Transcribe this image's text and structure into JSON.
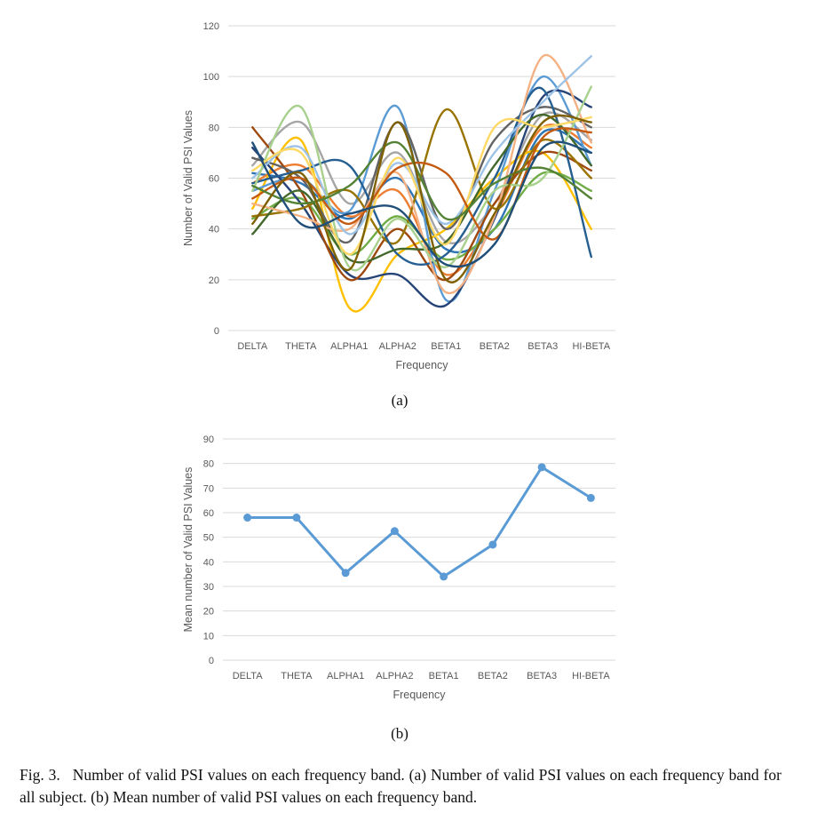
{
  "chart_data": [
    {
      "type": "line",
      "panel_label": "(a)",
      "categories": [
        "DELTA",
        "THETA",
        "ALPHA1",
        "ALPHA2",
        "BETA1",
        "BETA2",
        "BETA3",
        "HI-BETA"
      ],
      "xlabel": "Frequency",
      "ylabel": "Number of Valid PSI Values",
      "ylim": [
        0,
        120
      ],
      "yticks": [
        "0",
        "20",
        "40",
        "60",
        "80",
        "100",
        "120"
      ],
      "grid": true,
      "legend": "none",
      "series": [
        {
          "color": "#2e75b6",
          "values": [
            62,
            58,
            44,
            60,
            32,
            40,
            78,
            70
          ]
        },
        {
          "color": "#ed7d31",
          "values": [
            58,
            65,
            45,
            55,
            22,
            45,
            80,
            72
          ]
        },
        {
          "color": "#a5a5a5",
          "values": [
            65,
            82,
            50,
            70,
            35,
            50,
            85,
            75
          ]
        },
        {
          "color": "#ffc000",
          "values": [
            48,
            75,
            9,
            30,
            40,
            60,
            70,
            40
          ]
        },
        {
          "color": "#5b9bd5",
          "values": [
            55,
            60,
            47,
            88,
            12,
            55,
            100,
            65
          ]
        },
        {
          "color": "#70ad47",
          "values": [
            44,
            52,
            30,
            45,
            28,
            40,
            62,
            55
          ]
        },
        {
          "color": "#264478",
          "values": [
            72,
            50,
            22,
            22,
            10,
            44,
            92,
            88
          ]
        },
        {
          "color": "#9e480e",
          "values": [
            80,
            55,
            20,
            40,
            20,
            50,
            70,
            63
          ]
        },
        {
          "color": "#636363",
          "values": [
            68,
            60,
            35,
            82,
            40,
            75,
            88,
            80
          ]
        },
        {
          "color": "#997300",
          "values": [
            45,
            48,
            55,
            35,
            87,
            48,
            75,
            60
          ]
        },
        {
          "color": "#255e91",
          "values": [
            58,
            63,
            65,
            30,
            30,
            60,
            95,
            29
          ]
        },
        {
          "color": "#43682b",
          "values": [
            38,
            55,
            28,
            32,
            35,
            65,
            85,
            65
          ]
        },
        {
          "color": "#f4b183",
          "values": [
            50,
            45,
            40,
            62,
            15,
            45,
            108,
            74
          ]
        },
        {
          "color": "#9dc3e6",
          "values": [
            60,
            72,
            38,
            66,
            42,
            70,
            90,
            108
          ]
        },
        {
          "color": "#a9d18e",
          "values": [
            55,
            88,
            25,
            44,
            25,
            55,
            60,
            96
          ]
        },
        {
          "color": "#ffd966",
          "values": [
            63,
            70,
            30,
            68,
            34,
            80,
            80,
            84
          ]
        },
        {
          "color": "#c55a11",
          "values": [
            52,
            60,
            42,
            64,
            62,
            36,
            76,
            78
          ]
        },
        {
          "color": "#548235",
          "values": [
            57,
            50,
            57,
            74,
            44,
            58,
            64,
            52
          ]
        },
        {
          "color": "#7f6000",
          "values": [
            42,
            62,
            24,
            82,
            20,
            46,
            82,
            82
          ]
        },
        {
          "color": "#1f4e79",
          "values": [
            74,
            42,
            46,
            48,
            26,
            34,
            72,
            70
          ]
        }
      ]
    },
    {
      "type": "line",
      "panel_label": "(b)",
      "categories": [
        "DELTA",
        "THETA",
        "ALPHA1",
        "ALPHA2",
        "BETA1",
        "BETA2",
        "BETA3",
        "HI-BETA"
      ],
      "xlabel": "Frequency",
      "ylabel": "Mean number of Valid PSI Values",
      "ylim": [
        0,
        90
      ],
      "yticks": [
        "0",
        "10",
        "20",
        "30",
        "40",
        "50",
        "60",
        "70",
        "80",
        "90"
      ],
      "grid": true,
      "legend": "none",
      "series": [
        {
          "color": "#5b9bd5",
          "values": [
            58,
            58,
            35.5,
            52.5,
            34,
            47,
            78.5,
            66
          ]
        }
      ]
    }
  ],
  "caption": {
    "label": "Fig. 3.",
    "text": "Number of valid PSI values on each frequency band. (a) Number of valid PSI values on each frequency band for all subject. (b) Mean number of valid PSI values on each frequency band."
  }
}
